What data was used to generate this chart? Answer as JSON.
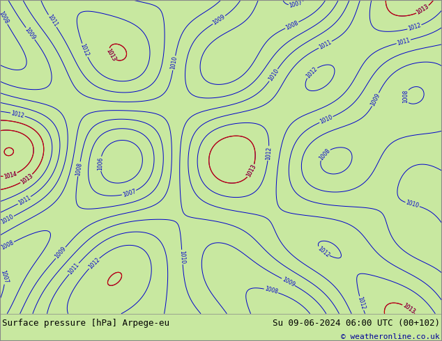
{
  "title_left": "Surface pressure [hPa] Arpege-eu",
  "title_right": "Su 09-06-2024 06:00 UTC (00+102)",
  "copyright": "© weatheronline.co.uk",
  "bg_color": "#c8e8a0",
  "bottom_bar_color": "#ffffff",
  "bottom_text_color": "#000000",
  "copyright_color": "#000099",
  "border_color": "#888888",
  "fig_width": 6.34,
  "fig_height": 4.9,
  "dpi": 100,
  "title_fontsize": 9,
  "copyright_fontsize": 8
}
